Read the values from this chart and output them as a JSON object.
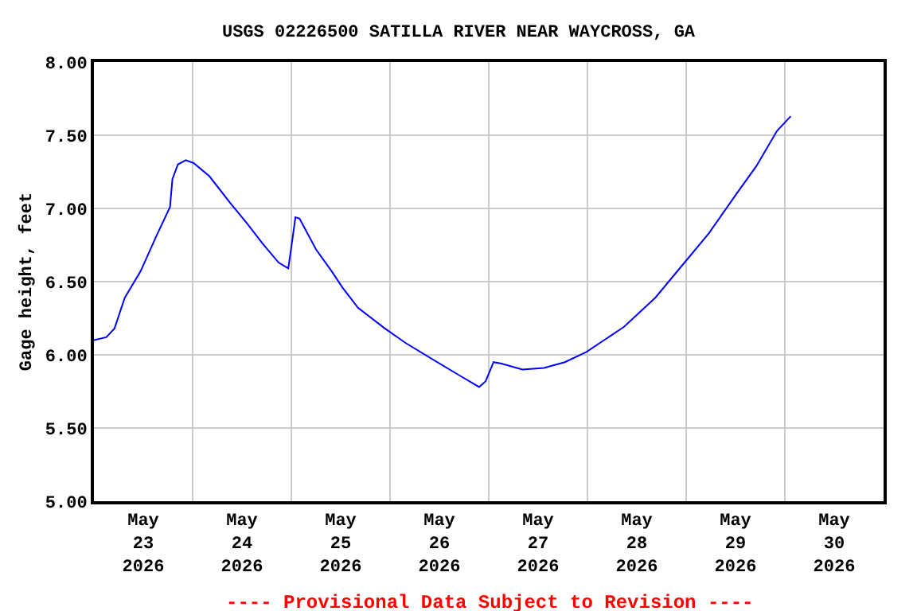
{
  "chart_data": {
    "type": "line",
    "title": "USGS 02226500 SATILLA RIVER NEAR WAYCROSS, GA",
    "ylabel": "Gage height, feet",
    "annotations": [
      "---- Provisional Data Subject to Revision ----"
    ],
    "x": [
      "2026-05-23T00:00",
      "2026-05-23T03:00",
      "2026-05-23T05:00",
      "2026-05-23T07:30",
      "2026-05-23T11:20",
      "2026-05-23T15:10",
      "2026-05-23T18:30",
      "2026-05-23T19:05",
      "2026-05-23T20:24",
      "2026-05-23T22:20",
      "2026-05-24T00:15",
      "2026-05-24T04:05",
      "2026-05-24T09:20",
      "2026-05-24T13:10",
      "2026-05-24T17:00",
      "2026-05-24T20:55",
      "2026-05-24T23:15",
      "2026-05-25T00:07",
      "2026-05-25T01:00",
      "2026-05-25T02:00",
      "2026-05-25T06:00",
      "2026-05-25T09:50",
      "2026-05-25T12:25",
      "2026-05-25T16:15",
      "2026-05-25T22:45",
      "2026-05-26T03:50",
      "2026-05-26T10:20",
      "2026-05-26T16:50",
      "2026-05-26T21:40",
      "2026-05-26T23:15",
      "2026-05-27T01:10",
      "2026-05-27T03:05",
      "2026-05-27T08:10",
      "2026-05-27T13:25",
      "2026-05-27T18:30",
      "2026-05-27T23:45",
      "2026-05-28T08:50",
      "2026-05-28T16:30",
      "2026-05-28T23:00",
      "2026-05-29T05:30",
      "2026-05-29T12:00",
      "2026-05-29T17:05",
      "2026-05-29T22:05",
      "2026-05-30T01:25"
    ],
    "series": [
      {
        "color": "#0000ff",
        "values": [
          6.1,
          6.12,
          6.18,
          6.39,
          6.57,
          6.81,
          7.01,
          7.2,
          7.3,
          7.33,
          7.31,
          7.22,
          7.03,
          6.9,
          6.76,
          6.63,
          6.59,
          6.76,
          6.94,
          6.93,
          6.72,
          6.57,
          6.46,
          6.32,
          6.18,
          6.08,
          5.97,
          5.86,
          5.78,
          5.82,
          5.95,
          5.94,
          5.9,
          5.91,
          5.95,
          6.02,
          6.19,
          6.39,
          6.61,
          6.83,
          7.09,
          7.29,
          7.53,
          7.63
        ]
      }
    ],
    "xlim": [
      "2026-05-23",
      "2026-05-31"
    ],
    "xticks": [
      {
        "value": "2026-05-23T12:00",
        "label": "May\n23\n2026"
      },
      {
        "value": "2026-05-24T12:00",
        "label": "May\n24\n2026"
      },
      {
        "value": "2026-05-25T12:00",
        "label": "May\n25\n2026"
      },
      {
        "value": "2026-05-26T12:00",
        "label": "May\n26\n2026"
      },
      {
        "value": "2026-05-27T12:00",
        "label": "May\n27\n2026"
      },
      {
        "value": "2026-05-28T12:00",
        "label": "May\n28\n2026"
      },
      {
        "value": "2026-05-29T12:00",
        "label": "May\n29\n2026"
      },
      {
        "value": "2026-05-30T12:00",
        "label": "May\n30\n2026"
      },
      {
        "value": "2026-05-24",
        "label": null
      },
      {
        "value": "2026-05-25",
        "label": null
      },
      {
        "value": "2026-05-26",
        "label": null
      },
      {
        "value": "2026-05-27",
        "label": null
      },
      {
        "value": "2026-05-28",
        "label": null
      },
      {
        "value": "2026-05-29",
        "label": null
      },
      {
        "value": "2026-05-30",
        "label": null
      }
    ],
    "ylim": [
      5,
      8
    ],
    "yticks": [
      {
        "value": 5,
        "label": "5.00"
      },
      {
        "value": 5.5,
        "label": "5.50"
      },
      {
        "value": 6,
        "label": "6.00"
      },
      {
        "value": 6.5,
        "label": "6.50"
      },
      {
        "value": 7,
        "label": "7.00"
      },
      {
        "value": 7.5,
        "label": "7.50"
      },
      {
        "value": 8,
        "label": "8.00"
      }
    ],
    "grid": true,
    "legend": false
  }
}
